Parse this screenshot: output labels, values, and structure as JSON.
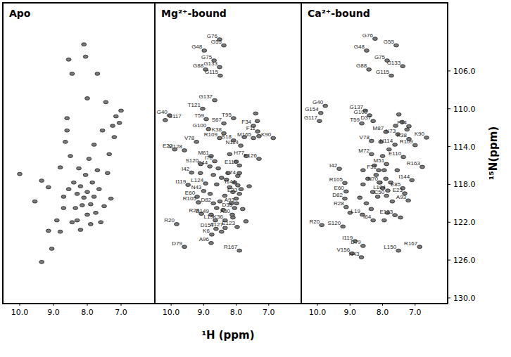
{
  "chart_data": [
    {
      "type": "scatter",
      "title": "Apo",
      "marker": "ellipse",
      "color": "#7a7a7a",
      "tick_labels": "x",
      "xlim": [
        10.5,
        6.0
      ],
      "xticks": [
        {
          "value": 10,
          "label": "10.0"
        },
        {
          "value": 9,
          "label": "9.0"
        },
        {
          "value": 8,
          "label": "8.0"
        },
        {
          "value": 7,
          "label": "7.0"
        }
      ],
      "ylim": [
        98.8,
        130.6
      ],
      "x": [
        10.0,
        9.55,
        9.35,
        9.15,
        9.15,
        9.05,
        8.9,
        8.8,
        8.8,
        8.7,
        8.65,
        8.6,
        8.55,
        8.45,
        8.4,
        8.35,
        8.3,
        8.3,
        8.25,
        8.2,
        8.2,
        8.15,
        8.1,
        8.05,
        8.1,
        8.05,
        8.0,
        8.0,
        7.95,
        7.9,
        7.9,
        7.85,
        7.8,
        7.8,
        7.75,
        7.7,
        7.7,
        7.65,
        7.6,
        7.55,
        7.5,
        7.45,
        7.4,
        7.35,
        7.3,
        7.25,
        7.2,
        7.15,
        7.05,
        7.0,
        9.35,
        8.55,
        8.45,
        8.5,
        8.7,
        8.0,
        8.6
      ],
      "values": [
        116.9,
        119.8,
        117.6,
        118.3,
        122.9,
        124.8,
        121.8,
        123.0,
        116.2,
        119.3,
        113.5,
        111.0,
        104.8,
        106.3,
        117.8,
        120.5,
        119.0,
        121.8,
        116.3,
        118.2,
        122.8,
        120.2,
        103.2,
        104.5,
        119.4,
        117.0,
        121.2,
        118.8,
        115.3,
        120.1,
        122.2,
        117.8,
        113.8,
        119.3,
        121.0,
        106.3,
        116.5,
        118.5,
        122.0,
        112.3,
        120.3,
        109.3,
        116.8,
        114.8,
        119.5,
        111.8,
        113.0,
        110.8,
        111.5,
        110.2,
        126.2,
        118.5,
        122.0,
        115.0,
        120.5,
        108.9,
        112.3
      ]
    },
    {
      "type": "scatter",
      "title": "Mg²⁺-bound",
      "marker": "ellipse",
      "color": "#7a7a7a",
      "tick_labels": "x",
      "xlabel": "¹H (ppm)",
      "xlim": [
        10.5,
        6.0
      ],
      "xticks": [
        {
          "value": 10,
          "label": "10.0"
        },
        {
          "value": 9,
          "label": "9.0"
        },
        {
          "value": 8,
          "label": "8.0"
        },
        {
          "value": 7,
          "label": "7.0"
        }
      ],
      "ylim": [
        98.8,
        130.6
      ],
      "x": [
        8.51,
        8.38,
        8.98,
        8.68,
        8.51,
        8.94,
        8.49,
        8.66,
        9.03,
        10.05,
        10.18,
        8.08,
        8.92,
        8.38,
        7.47,
        8.85,
        7.34,
        8.38,
        6.86,
        8.51,
        8.08,
        7.47,
        9.22,
        7.86,
        9.59,
        7.69,
        7.3,
        9.89,
        8.77,
        8.66,
        8.81,
        7.9,
        9.09,
        7.95,
        9.37,
        9.48,
        8.94,
        7.95,
        9.0,
        9.2,
        7.9,
        9.16,
        8.7,
        7.99,
        9.83,
        9.07,
        8.05,
        8.77,
        8.12,
        8.64,
        8.34,
        8.62,
        8.34,
        7.97,
        8.75,
        8.77,
        9.59,
        7.9,
        8.3,
        8.2,
        8.1,
        8.0,
        8.15,
        8.35,
        8.25,
        8.45,
        8.05,
        7.85,
        8.5,
        8.6,
        8.7,
        8.55,
        7.8,
        8.4,
        8.6,
        7.75,
        7.4,
        7.35,
        7.3,
        8.2,
        8.0,
        7.9,
        8.1,
        8.45,
        7.7,
        9.1,
        8.8,
        7.6
      ],
      "values": [
        102.67,
        103.3,
        103.85,
        104.9,
        105.6,
        105.85,
        106.5,
        109.1,
        110.0,
        110.7,
        111.2,
        111.0,
        111.1,
        111.55,
        111.8,
        112.15,
        112.4,
        112.6,
        113.1,
        113.1,
        113.35,
        113.1,
        113.5,
        113.9,
        114.4,
        115.0,
        115.3,
        114.3,
        115.0,
        115.55,
        116.1,
        116.0,
        115.85,
        117.1,
        116.75,
        118.05,
        117.9,
        118.1,
        118.7,
        119.3,
        119.0,
        119.9,
        120.0,
        120.0,
        122.2,
        121.1,
        120.5,
        121.2,
        121.2,
        121.8,
        121.8,
        122.7,
        122.6,
        122.5,
        123.3,
        124.2,
        124.6,
        125.0,
        117.5,
        118.3,
        118.8,
        119.5,
        120.0,
        119.2,
        116.8,
        117.3,
        117.8,
        118.5,
        119.8,
        118.0,
        117.0,
        116.3,
        120.6,
        120.7,
        120.5,
        113.0,
        110.5,
        111.3,
        112.9,
        114.8,
        115.6,
        116.8,
        121.5,
        123.0,
        121.9,
        116.8,
        119.0,
        118.2
      ],
      "point_labels": [
        "G76",
        "G55",
        "G48",
        "G75",
        "G133",
        "G88",
        "G115",
        "G137",
        "T121",
        "G40",
        "G117",
        "T95",
        "T59",
        "S67",
        "F34",
        "G100",
        "F11",
        "K38",
        "K90",
        "R109",
        "S18",
        "M165",
        "V78",
        "N114",
        "M128",
        "H77",
        "E126",
        "E22",
        "M61",
        "I70",
        "C44",
        "E110",
        "S120",
        "L74",
        "I42",
        "I119",
        "L124",
        "I144",
        "N43",
        "E60",
        "E23",
        "R105",
        "D82",
        "A93",
        "R20",
        "R28",
        "D35",
        "D149",
        "A30",
        "L19",
        "K36",
        "D157",
        "A127",
        "E123",
        "K6",
        "A96",
        "D79",
        "R167",
        null,
        null,
        null,
        null,
        null,
        null,
        null,
        null,
        null,
        null,
        null,
        null,
        null,
        null,
        null,
        null,
        null,
        null,
        null,
        null,
        null,
        null,
        null,
        null,
        null,
        null,
        null,
        null,
        null,
        null
      ]
    },
    {
      "type": "scatter",
      "title": "Ca²⁺-bound",
      "marker": "ellipse",
      "color": "#7a7a7a",
      "tick_labels": true,
      "ylabel": "¹⁵N(ppm)",
      "xlim": [
        10.5,
        6.0
      ],
      "xticks": [
        {
          "value": 10,
          "label": "10.0"
        },
        {
          "value": 9,
          "label": "9.0"
        },
        {
          "value": 8,
          "label": "8.0"
        },
        {
          "value": 7,
          "label": "7.0"
        }
      ],
      "ylim": [
        98.8,
        130.6
      ],
      "yticks": [
        {
          "value": 106,
          "label": "106.0"
        },
        {
          "value": 110,
          "label": "110.0"
        },
        {
          "value": 114,
          "label": "114.0"
        },
        {
          "value": 118,
          "label": "118.0"
        },
        {
          "value": 122,
          "label": "122.0"
        },
        {
          "value": 126,
          "label": "126.0"
        },
        {
          "value": 130,
          "label": "130.0"
        }
      ],
      "x": [
        8.23,
        7.58,
        8.49,
        7.86,
        7.38,
        8.42,
        7.73,
        9.76,
        9.9,
        9.94,
        8.53,
        8.4,
        8.29,
        8.64,
        7.19,
        7.9,
        7.53,
        7.19,
        6.65,
        8.34,
        7.62,
        7.0,
        8.34,
        7.36,
        7.88,
        6.78,
        9.33,
        8.12,
        8.08,
        7.1,
        9.16,
        7.38,
        7.84,
        9.12,
        7.32,
        9.16,
        7.21,
        7.88,
        9.12,
        8.62,
        7.62,
        8.29,
        9.87,
        9.22,
        8.85,
        8.6,
        7.51,
        6.86,
        8.94,
        8.65,
        8.2,
        8.1,
        8.0,
        7.9,
        8.3,
        8.15,
        7.75,
        7.95,
        8.45,
        8.6,
        7.7,
        8.35,
        8.5,
        7.55,
        7.5,
        7.4,
        7.25,
        7.6,
        8.05,
        8.0,
        7.8,
        8.6,
        7.85,
        8.7,
        7.45,
        9.0,
        7.95,
        8.25
      ],
      "values": [
        102.6,
        103.3,
        103.85,
        104.9,
        105.5,
        105.85,
        106.5,
        109.7,
        110.45,
        111.3,
        110.2,
        110.7,
        111.3,
        111.55,
        111.85,
        112.45,
        112.7,
        113.2,
        113.05,
        113.4,
        113.8,
        113.85,
        114.8,
        115.1,
        115.85,
        116.15,
        116.35,
        116.5,
        117.8,
        117.55,
        117.85,
        118.4,
        118.65,
        118.75,
        118.95,
        119.5,
        119.7,
        119.2,
        120.4,
        121.2,
        121.25,
        121.8,
        122.3,
        122.45,
        124.0,
        124.5,
        125.0,
        124.6,
        125.3,
        125.7,
        117.0,
        117.8,
        118.4,
        117.4,
        118.8,
        119.3,
        117.8,
        116.5,
        117.4,
        118.0,
        119.8,
        120.6,
        120.0,
        116.5,
        110.6,
        111.4,
        112.2,
        111.8,
        113.5,
        115.0,
        114.3,
        116.5,
        121.0,
        119.4,
        121.5,
        121.0,
        121.8,
        116.0
      ],
      "point_labels": [
        "G76",
        "G55",
        "G48",
        "G75",
        "G133",
        "G88",
        "G115",
        "G40",
        "G154",
        "G117",
        "G137",
        "G100",
        "D37",
        "T59",
        "F34",
        "M87",
        "N73",
        "K38",
        "K90",
        "V78",
        "N114",
        "R109",
        "M72",
        "E110",
        "M51",
        "R163",
        "I42",
        "F31",
        "N70",
        "I144",
        "R105",
        "E85",
        "L104",
        "E60",
        "E23",
        "D82",
        "A93",
        "C50",
        "R28",
        "L19",
        "E123",
        "I64",
        "R20",
        "S120",
        "I119",
        "D79",
        "L150",
        "R167",
        "V156",
        "N43",
        null,
        null,
        null,
        null,
        null,
        null,
        null,
        null,
        null,
        null,
        null,
        null,
        null,
        null,
        null,
        null,
        null,
        null,
        null,
        null,
        null,
        null,
        null,
        null,
        null,
        null,
        null,
        null
      ]
    }
  ]
}
